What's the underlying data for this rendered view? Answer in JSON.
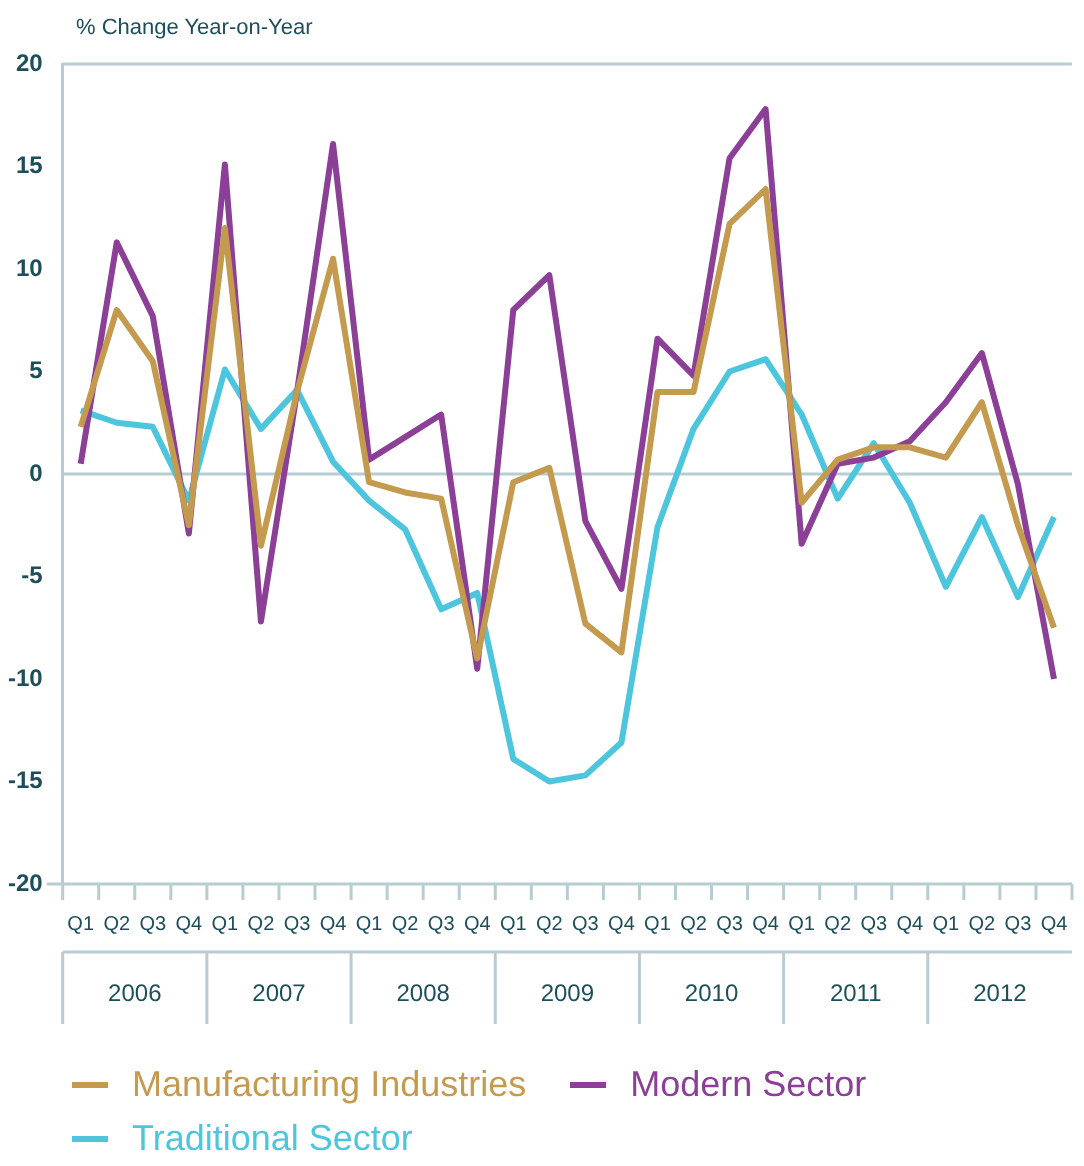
{
  "chart_data": {
    "type": "line",
    "ylabel": "% Change Year-on-Year",
    "categories": [
      "Q1",
      "Q2",
      "Q3",
      "Q4",
      "Q1",
      "Q2",
      "Q3",
      "Q4",
      "Q1",
      "Q2",
      "Q3",
      "Q4",
      "Q1",
      "Q2",
      "Q3",
      "Q4",
      "Q1",
      "Q2",
      "Q3",
      "Q4",
      "Q1",
      "Q2",
      "Q3",
      "Q4",
      "Q1",
      "Q2",
      "Q3",
      "Q4"
    ],
    "annotations": [
      "2006",
      "2007",
      "2008",
      "2009",
      "2010",
      "2011",
      "2012"
    ],
    "series": [
      {
        "name": "Manufacturing Industries",
        "color": "#c49a4e",
        "values": [
          2.3,
          8,
          5.5,
          -2.5,
          12,
          -3.5,
          4,
          10.5,
          -0.4,
          -0.9,
          -1.2,
          -9,
          -0.4,
          0.3,
          -7.3,
          -8.7,
          4,
          4,
          12.2,
          13.9,
          -1.4,
          0.7,
          1.3,
          1.3,
          0.8,
          3.5,
          -2.5,
          -7.5
        ]
      },
      {
        "name": "Modern Sector",
        "color": "#8b3f96",
        "values": [
          0.5,
          11.3,
          7.7,
          -2.9,
          15.1,
          -7.2,
          4,
          16.1,
          0.7,
          1.8,
          2.9,
          -9.5,
          8,
          9.7,
          -2.3,
          -5.6,
          6.6,
          4.8,
          15.4,
          17.8,
          -3.4,
          0.5,
          0.8,
          1.6,
          3.5,
          5.9,
          -0.5,
          -10
        ]
      },
      {
        "name": "Traditional Sector",
        "color": "#4dc6dd",
        "values": [
          3.1,
          2.5,
          2.3,
          -1.3,
          5.1,
          2.2,
          4.1,
          0.6,
          -1.3,
          -2.7,
          -6.6,
          -5.8,
          -13.9,
          -15,
          -14.7,
          -13.1,
          -2.6,
          2.2,
          5,
          5.6,
          2.9,
          -1.2,
          1.5,
          -1.4,
          -5.5,
          -2.1,
          -6,
          -2.1
        ]
      }
    ],
    "ylim": [
      -20,
      20
    ],
    "yticks": [
      -20,
      -15,
      -10,
      -5,
      0,
      5,
      10,
      15,
      20
    ],
    "ref_lines": [
      {
        "axis": "y",
        "value": 0,
        "color": "#b7cdd3"
      }
    ],
    "legend": "bottom",
    "grid": false,
    "marker": "none",
    "line_style": "solid"
  }
}
